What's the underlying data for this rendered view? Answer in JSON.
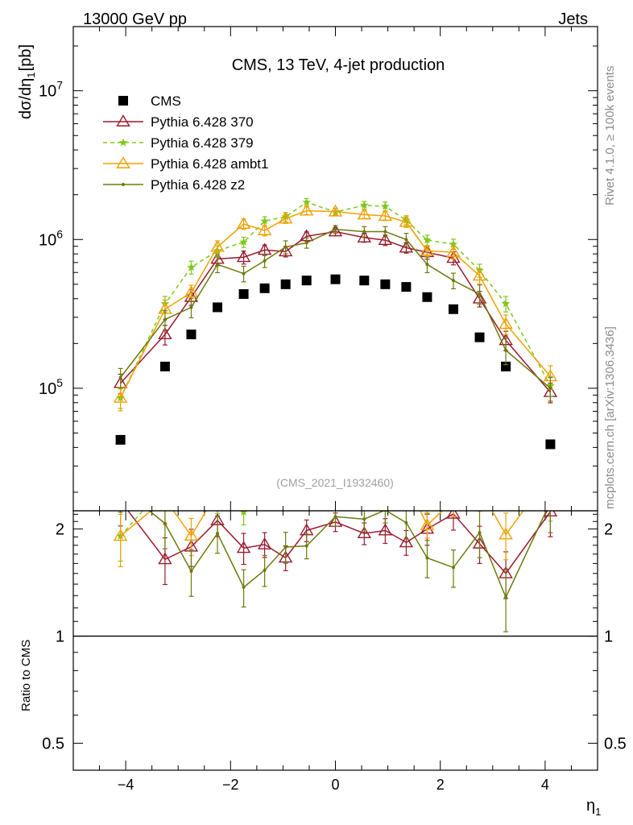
{
  "header": {
    "left": "13000 GeV pp",
    "right": "Jets"
  },
  "side_labels": {
    "rivet": "Rivet 4.1.0, ≥ 100k events",
    "mcplots": "mcplots.cern.ch [arXiv:1306.3436]"
  },
  "chart_data": {
    "type": "line",
    "title": "CMS, 13 TeV, 4-jet production",
    "analysis_tag": "(CMS_2021_I1932460)",
    "xlabel": "η",
    "xlabel_sub": "1",
    "ylabel": "dσ/dη",
    "ylabel_sub": "1",
    "ylabel_unit": "[pb]",
    "ratio_ylabel": "Ratio to CMS",
    "xlim": [
      -5,
      5
    ],
    "ylim": [
      15000,
      27000000
    ],
    "ratio_ylim": [
      0.42,
      2.25
    ],
    "x_ticks": [
      -4,
      -2,
      0,
      2,
      4
    ],
    "x_tick_labels": [
      "−4",
      "−2",
      "0",
      "2",
      "4"
    ],
    "y_tick_labels": [
      {
        "base": "10",
        "exp": "5",
        "value": 100000
      },
      {
        "base": "10",
        "exp": "6",
        "value": 1000000
      },
      {
        "base": "10",
        "exp": "7",
        "value": 10000000
      }
    ],
    "ratio_tick_labels": [
      {
        "label": "0.5",
        "value": 0.5
      },
      {
        "label": "1",
        "value": 1
      },
      {
        "label": "2",
        "value": 2
      }
    ],
    "x": [
      -4.1,
      -3.25,
      -2.75,
      -2.25,
      -1.75,
      -1.35,
      -0.95,
      -0.55,
      0.0,
      0.55,
      0.95,
      1.35,
      1.75,
      2.25,
      2.75,
      3.25,
      4.1
    ],
    "series": [
      {
        "name": "CMS",
        "color": "#000000",
        "marker": "square",
        "dashed": false,
        "values": [
          45000,
          140000,
          230000,
          350000,
          430000,
          470000,
          500000,
          530000,
          540000,
          530000,
          500000,
          480000,
          410000,
          340000,
          220000,
          140000,
          42000
        ],
        "errors": [
          0,
          0,
          0,
          0,
          0,
          0,
          0,
          0,
          0,
          0,
          0,
          0,
          0,
          0,
          0,
          0,
          0
        ]
      },
      {
        "name": "Pythia 6.428 370",
        "color": "#9a1a2e",
        "marker": "triangle-open",
        "dashed": false,
        "values": [
          108000,
          230000,
          410000,
          740000,
          760000,
          850000,
          830000,
          1050000,
          1130000,
          1030000,
          990000,
          880000,
          820000,
          750000,
          400000,
          210000,
          94000
        ],
        "errors": [
          0.15,
          0.15,
          0.12,
          0.1,
          0.1,
          0.08,
          0.08,
          0.07,
          0.06,
          0.07,
          0.08,
          0.08,
          0.1,
          0.1,
          0.12,
          0.15,
          0.15
        ]
      },
      {
        "name": "Pythia 6.428 379",
        "color": "#7ec81e",
        "marker": "star",
        "dashed": true,
        "values": [
          86000,
          370000,
          650000,
          840000,
          960000,
          1330000,
          1420000,
          1780000,
          1530000,
          1700000,
          1670000,
          1350000,
          990000,
          930000,
          620000,
          370000,
          104000
        ],
        "errors": [
          0.15,
          0.12,
          0.1,
          0.08,
          0.08,
          0.07,
          0.07,
          0.06,
          0.05,
          0.06,
          0.07,
          0.07,
          0.08,
          0.08,
          0.1,
          0.12,
          0.15
        ]
      },
      {
        "name": "Pythia 6.428 ambt1",
        "color": "#f0a000",
        "marker": "triangle-open",
        "dashed": false,
        "values": [
          86000,
          340000,
          440000,
          890000,
          1270000,
          1150000,
          1380000,
          1560000,
          1540000,
          1470000,
          1440000,
          1310000,
          840000,
          820000,
          570000,
          270000,
          120000
        ],
        "errors": [
          0.18,
          0.15,
          0.12,
          0.1,
          0.08,
          0.08,
          0.07,
          0.06,
          0.05,
          0.06,
          0.07,
          0.08,
          0.08,
          0.1,
          0.12,
          0.15,
          0.18
        ]
      },
      {
        "name": "Pythia 6.428 z2",
        "color": "#6e7a0e",
        "marker": "dot",
        "dashed": false,
        "values": [
          118000,
          290000,
          350000,
          680000,
          590000,
          720000,
          890000,
          950000,
          1170000,
          1130000,
          1130000,
          1000000,
          680000,
          530000,
          430000,
          180000,
          100000
        ],
        "errors": [
          0.15,
          0.15,
          0.15,
          0.12,
          0.12,
          0.1,
          0.1,
          0.08,
          0.06,
          0.08,
          0.08,
          0.1,
          0.12,
          0.12,
          0.15,
          0.2,
          0.18
        ]
      }
    ]
  }
}
